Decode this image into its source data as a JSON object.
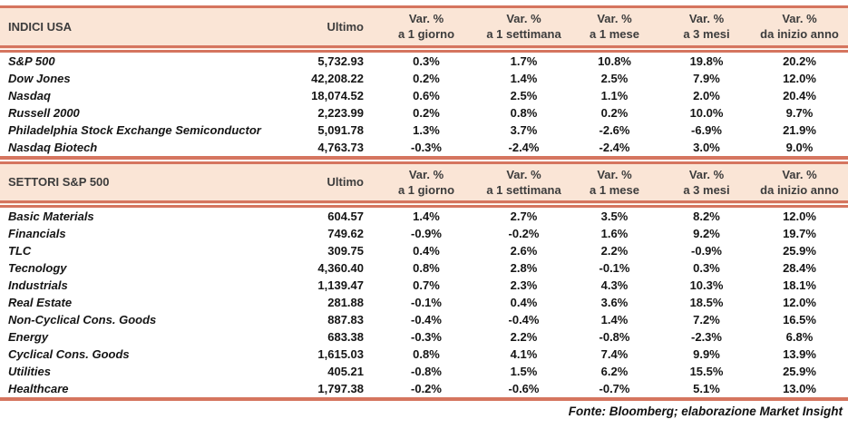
{
  "colors": {
    "accent": "#D5755F",
    "header_bg": "#FAE5D6",
    "header_text": "#3C3C3C",
    "body_text": "#151515"
  },
  "labels": {
    "ultimo": "Ultimo",
    "var_pct": "Var. %",
    "periods": [
      "a 1 giorno",
      "a 1 settimana",
      "a 1 mese",
      "a 3 mesi",
      "da inizio anno"
    ]
  },
  "footer": "Fonte: Bloomberg; elaborazione Market Insight",
  "chart_data": [
    {
      "type": "table",
      "title": "INDICI USA",
      "columns": [
        "INDICI USA",
        "Ultimo",
        "Var. % a 1 giorno",
        "Var. % a 1 settimana",
        "Var. % a 1 mese",
        "Var. % a 3 mesi",
        "Var. % da inizio anno"
      ],
      "rows": [
        {
          "name": "S&P 500",
          "ultimo": "5,732.93",
          "vars": [
            "0.3%",
            "1.7%",
            "10.8%",
            "19.8%",
            "20.2%"
          ]
        },
        {
          "name": "Dow Jones",
          "ultimo": "42,208.22",
          "vars": [
            "0.2%",
            "1.4%",
            "2.5%",
            "7.9%",
            "12.0%"
          ]
        },
        {
          "name": "Nasdaq",
          "ultimo": "18,074.52",
          "vars": [
            "0.6%",
            "2.5%",
            "1.1%",
            "2.0%",
            "20.4%"
          ]
        },
        {
          "name": "Russell 2000",
          "ultimo": "2,223.99",
          "vars": [
            "0.2%",
            "0.8%",
            "0.2%",
            "10.0%",
            "9.7%"
          ]
        },
        {
          "name": "Philadelphia Stock Exchange Semiconductor",
          "ultimo": "5,091.78",
          "vars": [
            "1.3%",
            "3.7%",
            "-2.6%",
            "-6.9%",
            "21.9%"
          ]
        },
        {
          "name": "Nasdaq Biotech",
          "ultimo": "4,763.73",
          "vars": [
            "-0.3%",
            "-2.4%",
            "-2.4%",
            "3.0%",
            "9.0%"
          ]
        }
      ]
    },
    {
      "type": "table",
      "title": "SETTORI S&P 500",
      "columns": [
        "SETTORI S&P 500",
        "Ultimo",
        "Var. % a 1 giorno",
        "Var. % a 1 settimana",
        "Var. % a 1 mese",
        "Var. % a 3 mesi",
        "Var. % da inizio anno"
      ],
      "rows": [
        {
          "name": "Basic Materials",
          "ultimo": "604.57",
          "vars": [
            "1.4%",
            "2.7%",
            "3.5%",
            "8.2%",
            "12.0%"
          ]
        },
        {
          "name": "Financials",
          "ultimo": "749.62",
          "vars": [
            "-0.9%",
            "-0.2%",
            "1.6%",
            "9.2%",
            "19.7%"
          ]
        },
        {
          "name": "TLC",
          "ultimo": "309.75",
          "vars": [
            "0.4%",
            "2.6%",
            "2.2%",
            "-0.9%",
            "25.9%"
          ]
        },
        {
          "name": "Tecnology",
          "ultimo": "4,360.40",
          "vars": [
            "0.8%",
            "2.8%",
            "-0.1%",
            "0.3%",
            "28.4%"
          ]
        },
        {
          "name": "Industrials",
          "ultimo": "1,139.47",
          "vars": [
            "0.7%",
            "2.3%",
            "4.3%",
            "10.3%",
            "18.1%"
          ]
        },
        {
          "name": "Real Estate",
          "ultimo": "281.88",
          "vars": [
            "-0.1%",
            "0.4%",
            "3.6%",
            "18.5%",
            "12.0%"
          ]
        },
        {
          "name": "Non-Cyclical Cons. Goods",
          "ultimo": "887.83",
          "vars": [
            "-0.4%",
            "-0.4%",
            "1.4%",
            "7.2%",
            "16.5%"
          ]
        },
        {
          "name": "Energy",
          "ultimo": "683.38",
          "vars": [
            "-0.3%",
            "2.2%",
            "-0.8%",
            "-2.3%",
            "6.8%"
          ]
        },
        {
          "name": "Cyclical Cons. Goods",
          "ultimo": "1,615.03",
          "vars": [
            "0.8%",
            "4.1%",
            "7.4%",
            "9.9%",
            "13.9%"
          ]
        },
        {
          "name": "Utilities",
          "ultimo": "405.21",
          "vars": [
            "-0.8%",
            "1.5%",
            "6.2%",
            "15.5%",
            "25.9%"
          ]
        },
        {
          "name": "Healthcare",
          "ultimo": "1,797.38",
          "vars": [
            "-0.2%",
            "-0.6%",
            "-0.7%",
            "5.1%",
            "13.0%"
          ]
        }
      ]
    }
  ]
}
